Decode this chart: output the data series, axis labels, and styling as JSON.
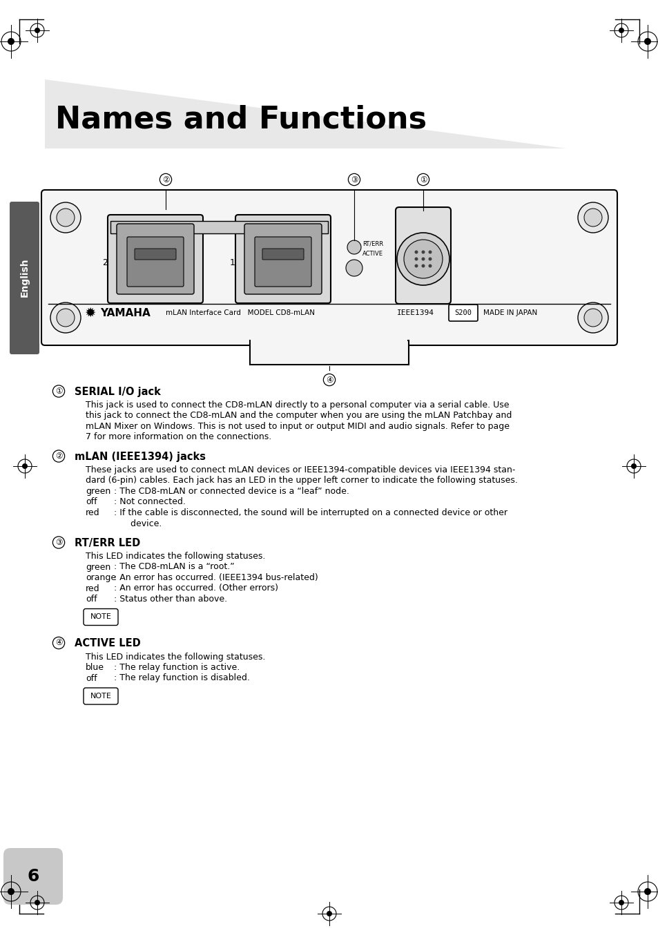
{
  "title": "Names and Functions",
  "bg_color": "#ffffff",
  "title_tri_color": "#e8e8e8",
  "sidebar_color": "#666666",
  "sidebar_text": "English",
  "section1_num": "①",
  "section1_head": "SERIAL I/O jack",
  "section1_body1": "This jack is used to connect the CD8-mLAN directly to a personal computer via a serial cable. Use",
  "section1_body2": "this jack to connect the CD8-mLAN and the computer when you are using the mLAN Patchbay and",
  "section1_body3": "mLAN Mixer on Windows. This is not used to input or output MIDI and audio signals. Refer to page",
  "section1_body4": "7 for more information on the connections.",
  "section2_num": "②",
  "section2_head": "mLAN (IEEE1394) jacks",
  "section2_body1": "These jacks are used to connect mLAN devices or IEEE1394-compatible devices via IEEE1394 stan-",
  "section2_body2": "dard (6-pin) cables. Each jack has an LED in the upper left corner to indicate the following statuses.",
  "section2_items": [
    [
      "green",
      ": The CD8-mLAN or connected device is a “leaf” node."
    ],
    [
      "off",
      ": Not connected."
    ],
    [
      "red",
      ": If the cable is disconnected, the sound will be interrupted on a connected device or other"
    ],
    [
      "",
      "      device."
    ]
  ],
  "section3_num": "③",
  "section3_head": "RT/ERR LED",
  "section3_body": "This LED indicates the following statuses.",
  "section3_items": [
    [
      "green",
      ": The CD8-mLAN is a “root.”"
    ],
    [
      "orange",
      ": An error has occurred. (IEEE1394 bus-related)"
    ],
    [
      "red",
      ": An error has occurred. (Other errors)"
    ],
    [
      "off",
      ": Status other than above."
    ]
  ],
  "section4_num": "④",
  "section4_head": "ACTIVE LED",
  "section4_body": "This LED indicates the following statuses.",
  "section4_items": [
    [
      "blue",
      ": The relay function is active."
    ],
    [
      "off",
      ": The relay function is disabled."
    ]
  ],
  "page_num": "6",
  "panel_label_yamaha": "mLAN Interface Card   MODEL CD8-mLAN",
  "panel_label_ieee": "EEE1394",
  "panel_label_s200": "S200",
  "panel_label_japan": "MADE IN JAPAN"
}
